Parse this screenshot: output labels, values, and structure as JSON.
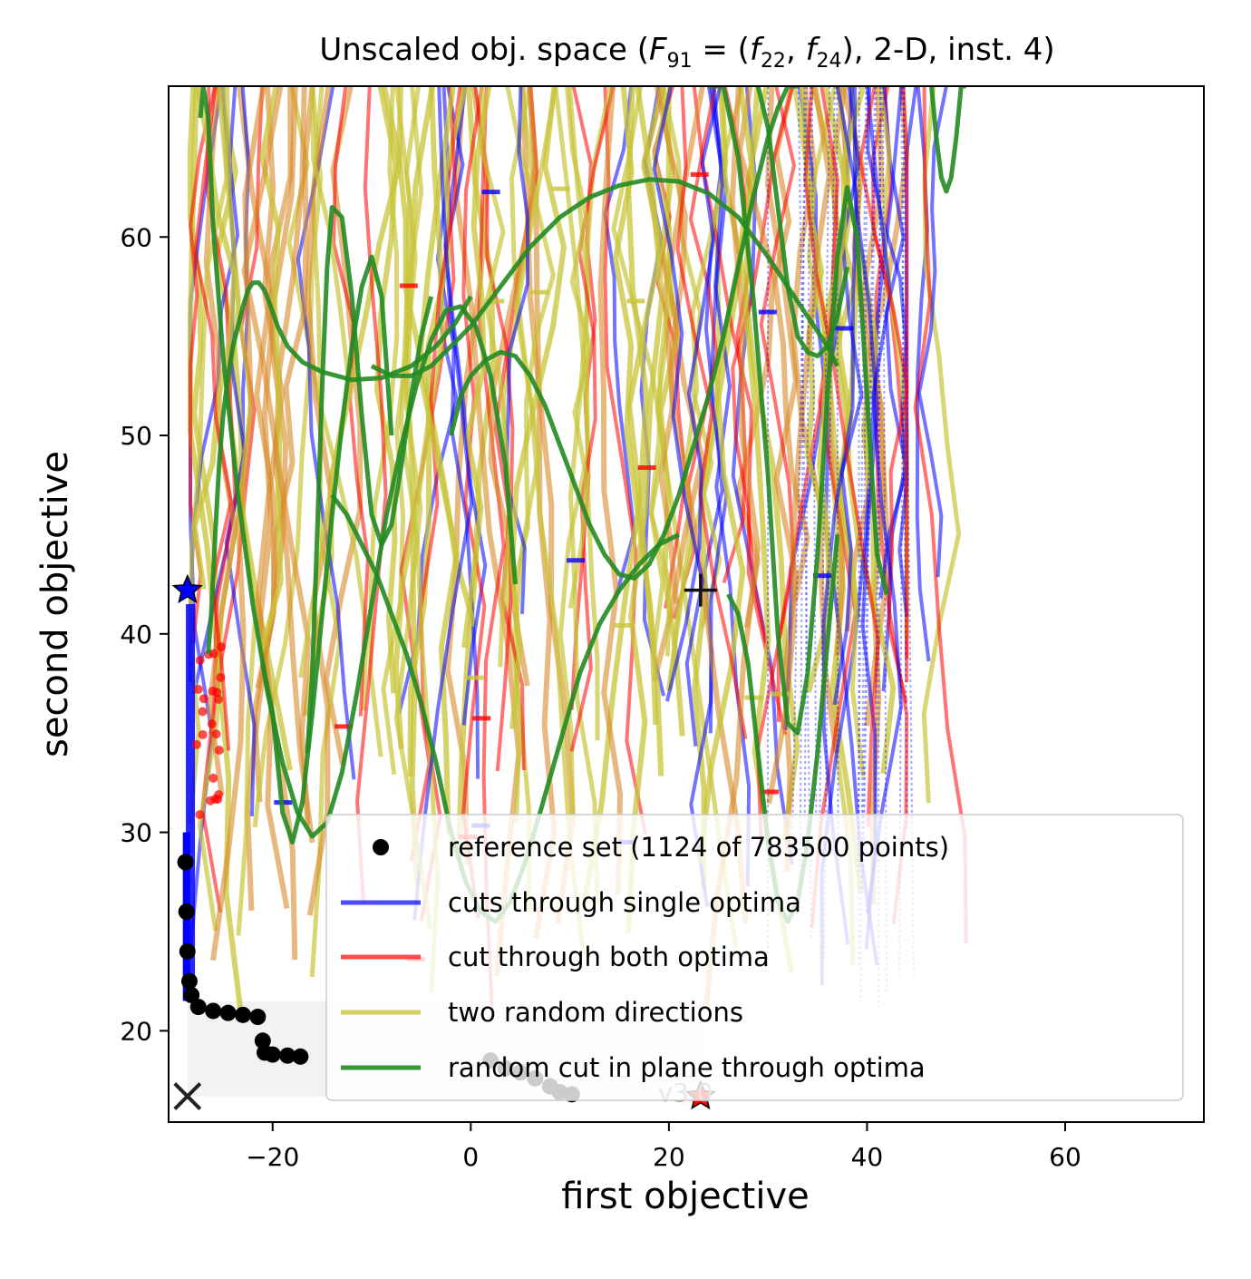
{
  "chart_data": {
    "type": "line",
    "title": "Unscaled obj. space (F91 = (f22, f24), 2-D, inst. 4)",
    "title_parts": {
      "prefix": "Unscaled obj. space (",
      "F": "F",
      "F_sub": "91",
      "eq": " = (",
      "f1": "f",
      "f1_sub": "22",
      "comma": ", ",
      "f2": "f",
      "f2_sub": "24",
      "suffix": "), 2-D, inst. 4)"
    },
    "xlabel": "first objective",
    "ylabel": "second objective",
    "xlim": [
      -30.5,
      74
    ],
    "ylim": [
      15.4,
      67.6
    ],
    "xticks": [
      -20,
      0,
      20,
      40,
      60
    ],
    "xtick_labels": [
      "−20",
      "0",
      "20",
      "40",
      "60"
    ],
    "yticks": [
      20,
      30,
      40,
      50,
      60
    ],
    "ytick_labels": [
      "20",
      "30",
      "40",
      "50",
      "60"
    ],
    "grid": false,
    "legend_position": "lower right",
    "legend": [
      {
        "label": "reference set (1124 of 783500 points)",
        "marker": "dot",
        "color": "#000000"
      },
      {
        "label": "cuts through single optima",
        "marker": "line",
        "color": "#0000ff"
      },
      {
        "label": "cut through both optima",
        "marker": "line",
        "color": "#ff0000"
      },
      {
        "label": "two random directions",
        "marker": "line",
        "color": "#c8c43a"
      },
      {
        "label": "random cut in plane through optima",
        "marker": "line",
        "color": "#228b22"
      }
    ],
    "colors": {
      "reference": "#000000",
      "single_optima": "#0000ff",
      "both_optima": "#ff0000",
      "random_dirs": "#c8c43a",
      "plane_cut": "#228b22",
      "orange_overlap": "#d88a2a"
    },
    "reference_set": [
      {
        "x": -28.8,
        "y": 28.5
      },
      {
        "x": -28.7,
        "y": 26.0
      },
      {
        "x": -28.6,
        "y": 24.0
      },
      {
        "x": -28.4,
        "y": 22.5
      },
      {
        "x": -28.2,
        "y": 21.8
      },
      {
        "x": -27.5,
        "y": 21.2
      },
      {
        "x": -26.0,
        "y": 21.0
      },
      {
        "x": -24.5,
        "y": 20.9
      },
      {
        "x": -23.0,
        "y": 20.8
      },
      {
        "x": -21.5,
        "y": 20.7
      },
      {
        "x": -21.0,
        "y": 19.5
      },
      {
        "x": -20.8,
        "y": 18.9
      },
      {
        "x": -20.0,
        "y": 18.8
      },
      {
        "x": -18.5,
        "y": 18.75
      },
      {
        "x": -17.2,
        "y": 18.7
      },
      {
        "x": 2.0,
        "y": 18.5
      },
      {
        "x": 3.5,
        "y": 18.1
      },
      {
        "x": 5.0,
        "y": 17.9
      },
      {
        "x": 6.5,
        "y": 17.6
      },
      {
        "x": 8.0,
        "y": 17.2
      },
      {
        "x": 9.0,
        "y": 16.9
      },
      {
        "x": 10.2,
        "y": 16.8
      }
    ],
    "reference_front_x_column": {
      "x": -28.7,
      "y_from": 21.5,
      "y_to": 30.0
    },
    "single_optima_blue_column": {
      "x": -28.3,
      "y_from": 21.5,
      "y_to": 41.5
    },
    "optimum_stars": [
      {
        "x": -28.6,
        "y": 42.2,
        "color": "#0000ff"
      },
      {
        "x": 23.2,
        "y": 16.7,
        "color": "#ff0000"
      }
    ],
    "ideal_point": {
      "x": -28.6,
      "y": 16.7,
      "marker": "x"
    },
    "nadir_point": {
      "x": 23.2,
      "y": 42.2,
      "marker": "+"
    },
    "dominated_region": {
      "x_from": -28.6,
      "x_to": 23.2,
      "y_from": 16.7,
      "y_to": 21.5
    },
    "plane_cut_series": [
      {
        "name": "",
        "x": [
          -26.5,
          -26.2,
          -25.8,
          -25.4,
          -25.0,
          -24.5,
          -24.0,
          -23.5,
          -23.0,
          -22.5,
          -22.0,
          -21.4,
          -20.8,
          -20.2,
          -19.5,
          -18.5,
          -17.0,
          -15.0,
          -12.0,
          -9.0,
          -6.0,
          -3.5,
          -1.5,
          0.0
        ],
        "y": [
          39.0,
          41.0,
          45.0,
          48.5,
          51.0,
          53.0,
          54.5,
          55.5,
          56.5,
          57.3,
          57.7,
          57.7,
          57.3,
          56.5,
          55.5,
          54.5,
          53.7,
          53.2,
          52.8,
          52.9,
          53.5,
          54.5,
          55.7,
          57.0
        ]
      },
      {
        "name": "",
        "x": [
          -27.3,
          -27.0,
          -26.5,
          -26.0,
          -25.0,
          -23.5,
          -22.0,
          -20.5,
          -19.0,
          -17.5,
          -16.0,
          -14.5,
          -13.0,
          -11.5,
          -10.0,
          -8.5,
          -7.0,
          -5.5,
          -4.0,
          -2.5,
          -1.0,
          0.5,
          2.0,
          3.5,
          4.5
        ],
        "y": [
          66.0,
          67.6,
          66.0,
          60.5,
          54.0,
          47.0,
          41.5,
          37.0,
          33.5,
          31.0,
          29.8,
          30.5,
          33.0,
          37.0,
          41.5,
          46.0,
          49.5,
          52.5,
          54.8,
          56.3,
          56.5,
          55.5,
          53.0,
          48.5,
          42.5
        ]
      },
      {
        "name": "",
        "x": [
          -21.0,
          -20.0,
          -19.0,
          -18.0,
          -17.0,
          -16.0,
          -15.0,
          -14.0,
          -13.0,
          -12.0,
          -11.0,
          -10.0,
          -9.0,
          -8.0
        ],
        "y": [
          38.5,
          36.0,
          31.0,
          29.5,
          31.5,
          36.0,
          41.0,
          46.0,
          50.5,
          54.5,
          57.5,
          59.0,
          57.0,
          50.0
        ]
      },
      {
        "name": "",
        "x": [
          -16.5,
          -16.0,
          -15.5,
          -15.0,
          -14.5,
          -14.0,
          -13.0,
          -12.0,
          -11.0,
          -10.0,
          -9.0,
          -8.0,
          -7.0,
          -6.0,
          -5.0,
          -4.0
        ],
        "y": [
          34.0,
          38.0,
          45.0,
          52.5,
          58.5,
          61.5,
          61.0,
          57.0,
          51.0,
          46.0,
          44.5,
          45.5,
          48.5,
          52.0,
          55.0,
          57.0
        ]
      },
      {
        "name": "",
        "x": [
          -10.0,
          -8.0,
          -6.0,
          -4.0,
          -2.0,
          0.0,
          3.0,
          6.0,
          9.0,
          12.0,
          15.0,
          18.0,
          21.0,
          24.0,
          27.0,
          30.0,
          32.0,
          34.0,
          36.0,
          37.0
        ],
        "y": [
          53.5,
          53.0,
          53.0,
          53.5,
          54.5,
          55.5,
          57.5,
          59.5,
          61.0,
          62.0,
          62.6,
          62.9,
          62.8,
          62.2,
          61.0,
          59.0,
          57.5,
          56.0,
          54.5,
          53.5
        ]
      },
      {
        "name": "",
        "x": [
          -14.0,
          -12.5,
          -11.0,
          -9.5,
          -8.0,
          -6.5,
          -5.0,
          -3.5,
          -2.0,
          -0.5,
          1.0,
          2.5,
          4.0,
          5.5,
          7.0,
          9.0,
          11.0,
          13.0,
          15.0,
          17.0,
          19.0,
          21.0
        ],
        "y": [
          47.0,
          46.0,
          44.5,
          43.0,
          41.0,
          39.0,
          36.5,
          33.5,
          30.0,
          27.5,
          26.0,
          25.5,
          26.5,
          28.5,
          31.0,
          34.5,
          38.0,
          40.5,
          42.2,
          43.5,
          44.5,
          45.0
        ]
      },
      {
        "name": "",
        "x": [
          -2.0,
          -1.0,
          0.0,
          1.5,
          3.0,
          4.5,
          6.0,
          7.5,
          9.0,
          10.5,
          12.0,
          13.5,
          15.0,
          16.5,
          18.0,
          19.5,
          21.0,
          22.5,
          24.0,
          25.5,
          27.0,
          28.5,
          30.0,
          31.0,
          32.0,
          33.0
        ],
        "y": [
          50.0,
          52.0,
          53.0,
          53.8,
          54.2,
          54.0,
          53.0,
          51.5,
          49.5,
          47.5,
          45.5,
          44.0,
          43.0,
          42.8,
          43.5,
          45.0,
          47.0,
          49.5,
          52.0,
          55.0,
          58.5,
          62.0,
          65.0,
          66.5,
          67.6,
          67.6
        ]
      },
      {
        "name": "",
        "x": [
          24.0,
          25.5,
          27.0,
          28.5,
          30.0,
          31.0,
          32.0,
          33.0,
          34.0,
          35.0,
          36.0,
          37.0,
          38.0,
          39.0,
          40.0,
          41.0,
          42.0
        ],
        "y": [
          67.6,
          67.6,
          64.0,
          57.0,
          48.0,
          40.0,
          35.5,
          35.0,
          38.0,
          44.0,
          52.0,
          59.0,
          62.5,
          60.0,
          52.0,
          44.0,
          42.0
        ]
      },
      {
        "name": "",
        "x": [
          26.0,
          27.0,
          28.0,
          29.0,
          30.0,
          31.0,
          32.0,
          33.0,
          34.0,
          35.0,
          36.0,
          37.0
        ],
        "y": [
          42.0,
          41.0,
          38.5,
          34.0,
          29.5,
          26.5,
          25.5,
          26.5,
          29.5,
          34.0,
          39.5,
          45.0
        ]
      },
      {
        "name": "",
        "x": [
          29.0,
          30.0,
          31.0,
          32.0,
          33.0,
          34.0,
          35.0,
          36.0,
          37.0,
          38.0
        ],
        "y": [
          67.6,
          65.5,
          61.5,
          57.5,
          55.0,
          54.2,
          54.0,
          54.5,
          56.0,
          58.5
        ]
      },
      {
        "name": "",
        "x": [
          46.5,
          47.0,
          47.5,
          48.0,
          48.5,
          49.0,
          49.5,
          50.0
        ],
        "y": [
          67.6,
          65.0,
          63.0,
          62.3,
          63.0,
          65.0,
          67.6,
          67.6
        ]
      }
    ]
  }
}
